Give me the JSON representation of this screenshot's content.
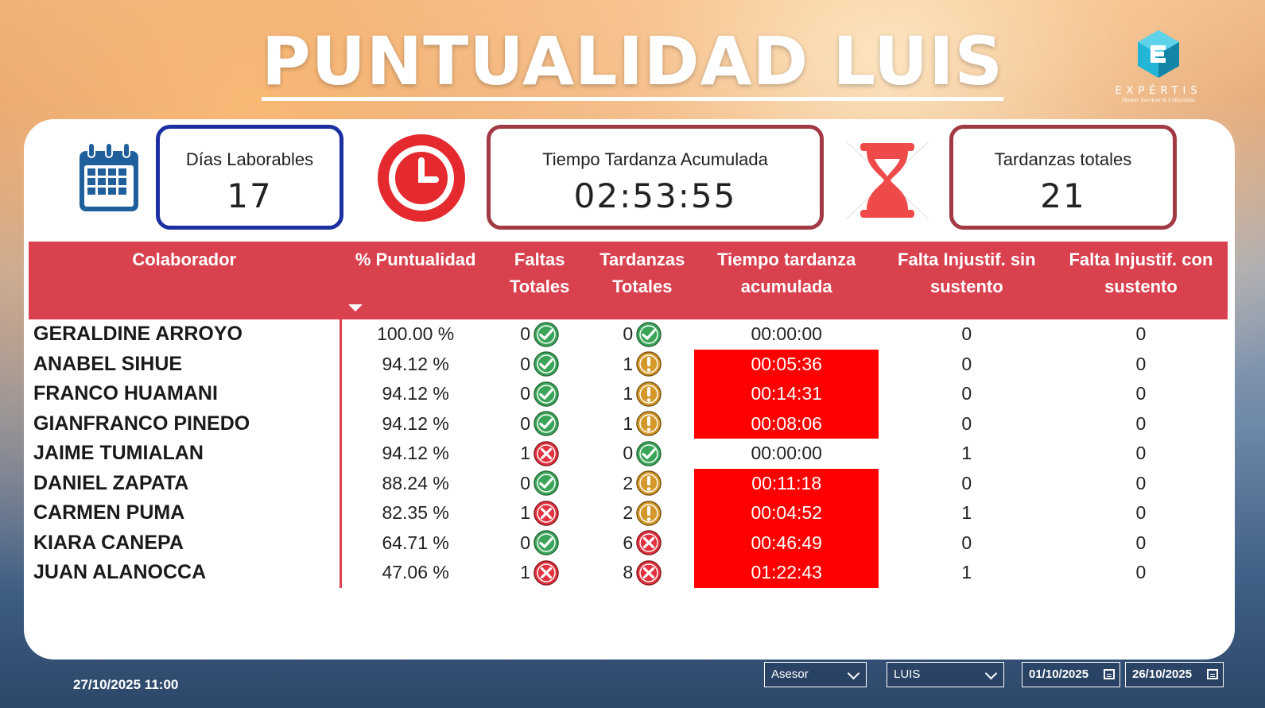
{
  "header": {
    "title": "PUNTUALIDAD LUIS",
    "logo_brand": "EXPÉRTIS",
    "logo_tagline": "Master Servicer & Collections"
  },
  "kpis": {
    "dias": {
      "label": "Días Laborables",
      "value": "17"
    },
    "tiempo": {
      "label": "Tiempo Tardanza Acumulada",
      "value": "02:53:55"
    },
    "tardanzas": {
      "label": "Tardanzas totales",
      "value": "21"
    }
  },
  "table": {
    "headers": {
      "colaborador": "Colaborador",
      "puntualidad": "% Puntualidad",
      "faltas": "Faltas Totales",
      "tardanzas": "Tardanzas Totales",
      "tiempo": "Tiempo tardanza acumulada",
      "sin_sustento": "Falta Injustif. sin sustento",
      "con_sustento": "Falta Injustif. con sustento"
    },
    "rows": [
      {
        "name": "GERALDINE ARROYO",
        "pct": "100.00 %",
        "faltas": "0",
        "faltas_icon": "check",
        "tard": "0",
        "tard_icon": "check",
        "tiempo": "00:00:00",
        "tiempo_highlight": false,
        "sin": "0",
        "con": "0"
      },
      {
        "name": "ANABEL SIHUE",
        "pct": "94.12 %",
        "faltas": "0",
        "faltas_icon": "check",
        "tard": "1",
        "tard_icon": "warning",
        "tiempo": "00:05:36",
        "tiempo_highlight": true,
        "sin": "0",
        "con": "0"
      },
      {
        "name": "FRANCO HUAMANI",
        "pct": "94.12 %",
        "faltas": "0",
        "faltas_icon": "check",
        "tard": "1",
        "tard_icon": "warning",
        "tiempo": "00:14:31",
        "tiempo_highlight": true,
        "sin": "0",
        "con": "0"
      },
      {
        "name": "GIANFRANCO PINEDO",
        "pct": "94.12 %",
        "faltas": "0",
        "faltas_icon": "check",
        "tard": "1",
        "tard_icon": "warning",
        "tiempo": "00:08:06",
        "tiempo_highlight": true,
        "sin": "0",
        "con": "0"
      },
      {
        "name": "JAIME TUMIALAN",
        "pct": "94.12 %",
        "faltas": "1",
        "faltas_icon": "cross",
        "tard": "0",
        "tard_icon": "check",
        "tiempo": "00:00:00",
        "tiempo_highlight": false,
        "sin": "1",
        "con": "0"
      },
      {
        "name": "DANIEL ZAPATA",
        "pct": "88.24 %",
        "faltas": "0",
        "faltas_icon": "check",
        "tard": "2",
        "tard_icon": "warning",
        "tiempo": "00:11:18",
        "tiempo_highlight": true,
        "sin": "0",
        "con": "0"
      },
      {
        "name": "CARMEN PUMA",
        "pct": "82.35 %",
        "faltas": "1",
        "faltas_icon": "cross",
        "tard": "2",
        "tard_icon": "warning",
        "tiempo": "00:04:52",
        "tiempo_highlight": true,
        "sin": "1",
        "con": "0"
      },
      {
        "name": "KIARA CANEPA",
        "pct": "64.71 %",
        "faltas": "0",
        "faltas_icon": "check",
        "tard": "6",
        "tard_icon": "cross",
        "tiempo": "00:46:49",
        "tiempo_highlight": true,
        "sin": "0",
        "con": "0"
      },
      {
        "name": "JUAN ALANOCCA",
        "pct": "47.06 %",
        "faltas": "1",
        "faltas_icon": "cross",
        "tard": "8",
        "tard_icon": "cross",
        "tiempo": "01:22:43",
        "tiempo_highlight": true,
        "sin": "1",
        "con": "0"
      }
    ]
  },
  "footer": {
    "timestamp": "27/10/2025 11:00",
    "filter_field": "Asesor",
    "filter_value": "LUIS",
    "date_from": "01/10/2025",
    "date_to": "26/10/2025"
  },
  "colors": {
    "header_red": "#d9414f",
    "highlight_red": "#ff0000",
    "blue_card": "#1b2fa0",
    "red_card": "#a23a44",
    "check_green": "#3aa559",
    "warn_amber": "#d4992a",
    "cross_red": "#e2323f"
  }
}
